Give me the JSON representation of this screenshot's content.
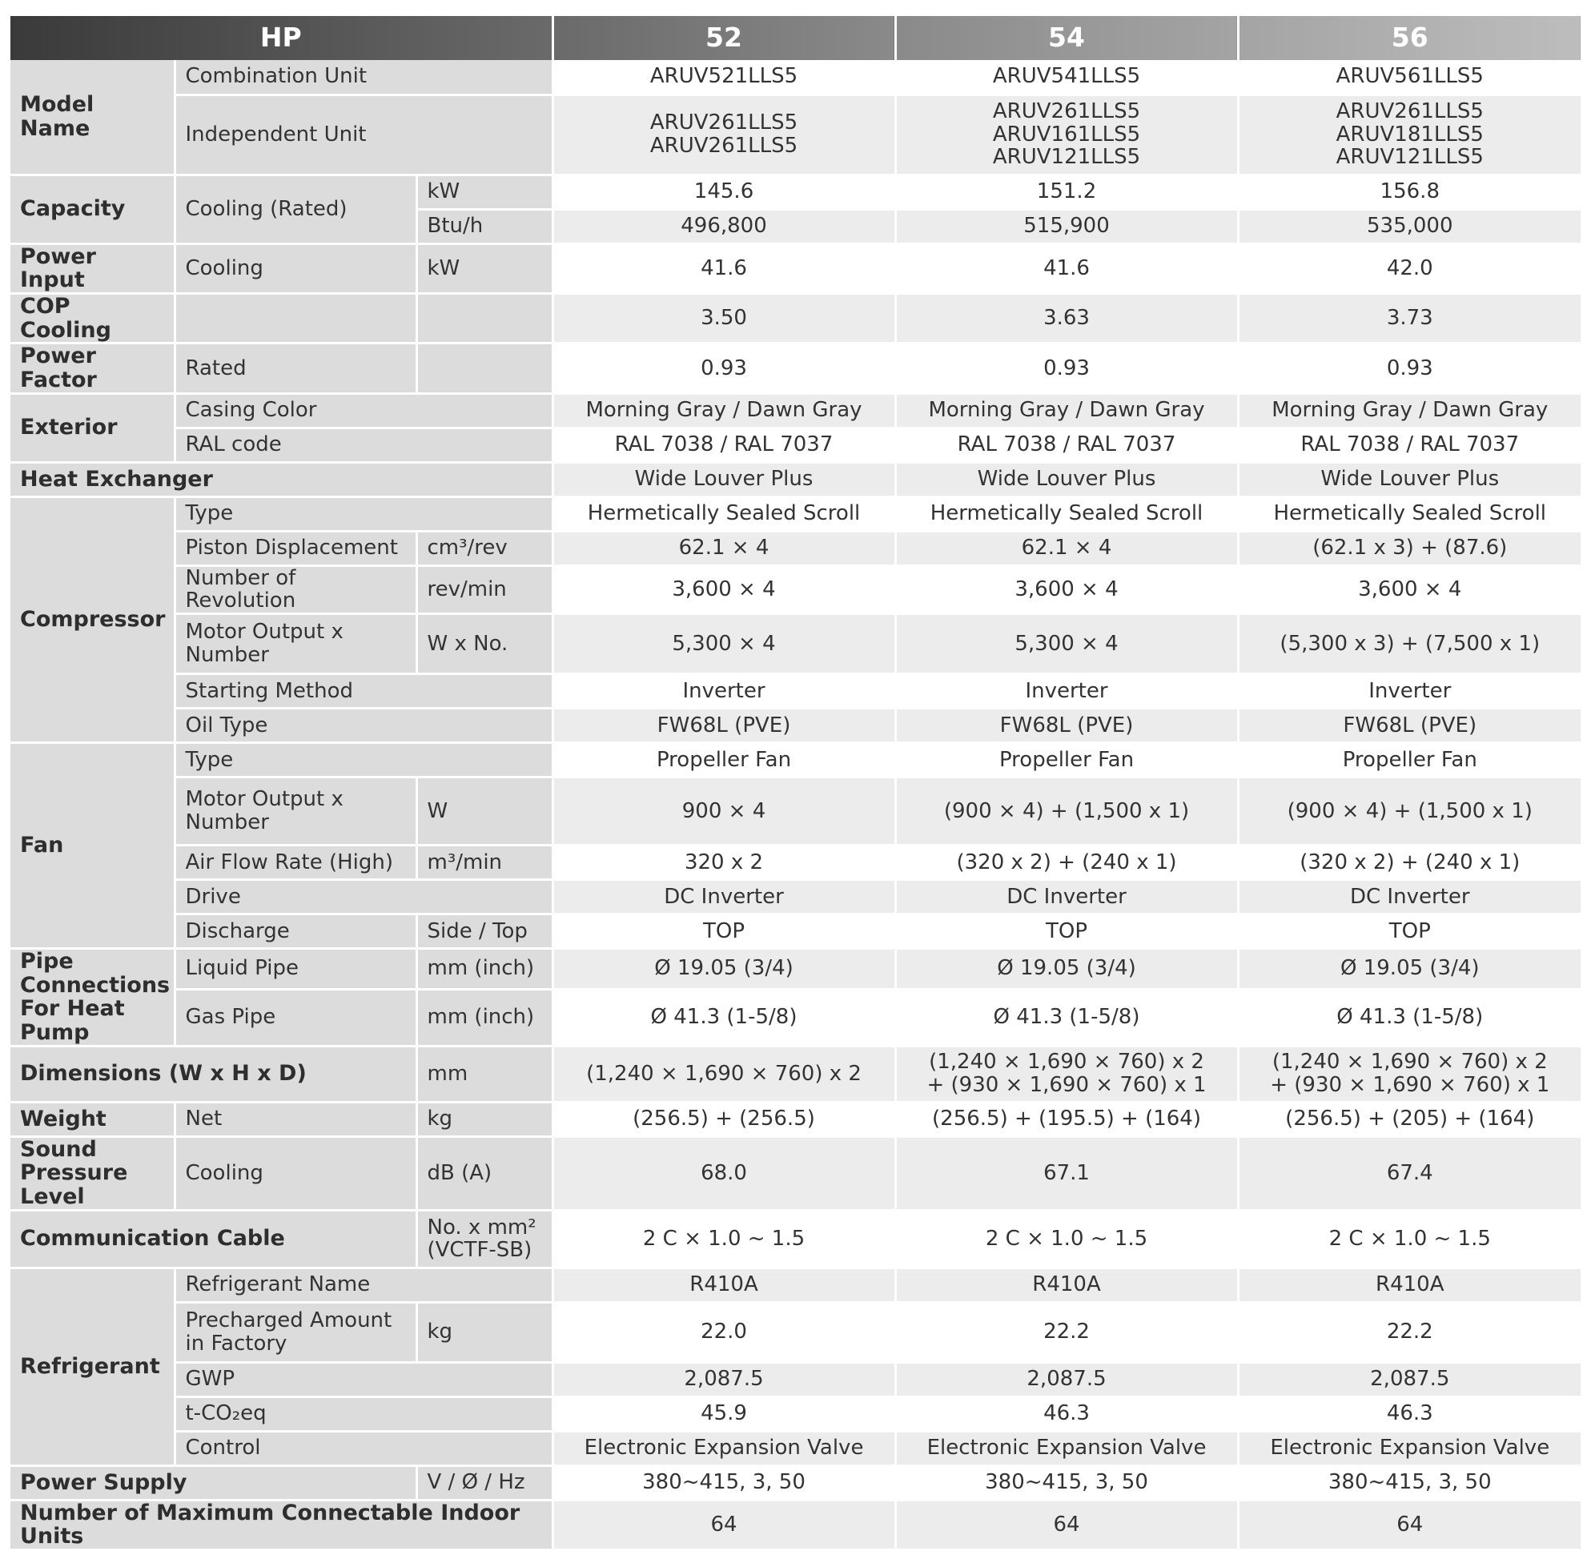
{
  "header": {
    "label": "HP",
    "models": [
      "52",
      "54",
      "56"
    ]
  },
  "rows": [
    {
      "cat": "Model Name",
      "catspan": 2,
      "sub": "Combination Unit",
      "subspan": 2,
      "unit": null,
      "values": [
        "ARUV521LLS5",
        "ARUV541LLS5",
        "ARUV561LLS5"
      ],
      "h": 43
    },
    {
      "sub": "Independent Unit",
      "subspan": 2,
      "unit": null,
      "values": [
        "ARUV261LLS5\nARUV261LLS5",
        "ARUV261LLS5\nARUV161LLS5\nARUV121LLS5",
        "ARUV261LLS5\nARUV181LLS5\nARUV121LLS5"
      ],
      "h": 100
    },
    {
      "cat": "Capacity",
      "catspan": 2,
      "sub": "Cooling (Rated)",
      "subrowspan": 2,
      "unit": "kW",
      "values": [
        "145.6",
        "151.2",
        "156.8"
      ],
      "h": 43
    },
    {
      "unit": "Btu/h",
      "values": [
        "496,800",
        "515,900",
        "535,000"
      ],
      "h": 43
    },
    {
      "cat": "Power Input",
      "sub": "Cooling",
      "unit": "kW",
      "values": [
        "41.6",
        "41.6",
        "42.0"
      ],
      "h": 43
    },
    {
      "cat": "COP Cooling",
      "sub": "",
      "unit": "",
      "values": [
        "3.50",
        "3.63",
        "3.73"
      ],
      "h": 43
    },
    {
      "cat": "Power Factor",
      "sub": "Rated",
      "unit": "",
      "values": [
        "0.93",
        "0.93",
        "0.93"
      ],
      "h": 43
    },
    {
      "cat": "Exterior",
      "catspan": 2,
      "sub": "Casing Color",
      "subspan": 2,
      "values": [
        "Morning Gray / Dawn Gray",
        "Morning Gray / Dawn Gray",
        "Morning Gray / Dawn Gray"
      ],
      "h": 43
    },
    {
      "sub": "RAL code",
      "subspan": 2,
      "values": [
        "RAL 7038 / RAL 7037",
        "RAL 7038 / RAL 7037",
        "RAL 7038 / RAL 7037"
      ],
      "h": 43
    },
    {
      "cat": "Heat Exchanger",
      "catcolspan": 3,
      "values": [
        "Wide Louver Plus",
        "Wide Louver Plus",
        "Wide Louver Plus"
      ],
      "h": 43
    },
    {
      "cat": "Compressor",
      "catspan": 6,
      "sub": "Type",
      "subspan": 2,
      "values": [
        "Hermetically Sealed Scroll",
        "Hermetically Sealed Scroll",
        "Hermetically Sealed Scroll"
      ],
      "h": 43
    },
    {
      "sub": "Piston Displacement",
      "unit": "cm³/rev",
      "values": [
        "62.1 × 4",
        "62.1 × 4",
        "(62.1 x 3) + (87.6)"
      ],
      "h": 43
    },
    {
      "sub": "Number of Revolution",
      "unit": "rev/min",
      "values": [
        "3,600 × 4",
        "3,600 × 4",
        "3,600 × 4"
      ],
      "h": 43
    },
    {
      "sub": "Motor Output x Number",
      "unit": "W x No.",
      "values": [
        "5,300 × 4",
        "5,300 × 4",
        "(5,300 x 3) + (7,500 x 1)"
      ],
      "h": 75
    },
    {
      "sub": "Starting Method",
      "subspan": 2,
      "values": [
        "Inverter",
        "Inverter",
        "Inverter"
      ],
      "h": 43
    },
    {
      "sub": "Oil Type",
      "subspan": 2,
      "values": [
        "FW68L (PVE)",
        "FW68L (PVE)",
        "FW68L (PVE)"
      ],
      "h": 43
    },
    {
      "cat": "Fan",
      "catspan": 5,
      "sub": "Type",
      "subspan": 2,
      "values": [
        "Propeller Fan",
        "Propeller Fan",
        "Propeller Fan"
      ],
      "h": 43
    },
    {
      "sub": "Motor Output x Number",
      "unit": "W",
      "values": [
        "900 × 4",
        "(900 × 4) + (1,500 x 1)",
        "(900 × 4) + (1,500 x 1)"
      ],
      "h": 85
    },
    {
      "sub": "Air Flow Rate (High)",
      "unit": "m³/min",
      "values": [
        "320 x 2",
        "(320 x 2) + (240 x 1)",
        "(320 x 2) + (240 x 1)"
      ],
      "h": 43
    },
    {
      "sub": "Drive",
      "subspan": 2,
      "values": [
        "DC Inverter",
        "DC Inverter",
        "DC Inverter"
      ],
      "h": 43
    },
    {
      "sub": "Discharge",
      "unit": "Side / Top",
      "values": [
        "TOP",
        "TOP",
        "TOP"
      ],
      "h": 43
    },
    {
      "cat": "Pipe Connections For Heat Pump",
      "catspan": 2,
      "sub": "Liquid Pipe",
      "unit": "mm (inch)",
      "values": [
        "Ø 19.05 (3/4)",
        "Ø 19.05 (3/4)",
        "Ø 19.05 (3/4)"
      ],
      "h": 43
    },
    {
      "sub": "Gas Pipe",
      "unit": "mm (inch)",
      "values": [
        "Ø 41.3 (1-5/8)",
        "Ø 41.3 (1-5/8)",
        "Ø 41.3 (1-5/8)"
      ],
      "h": 60
    },
    {
      "cat": "Dimensions (W x H x D)",
      "catcolspan": 2,
      "unit": "mm",
      "values": [
        "(1,240 × 1,690 × 760) x 2",
        "(1,240 × 1,690 × 760) x 2\n+  (930 × 1,690 × 760) x 1",
        "(1,240 × 1,690 × 760) x 2\n+  (930 × 1,690 × 760) x 1"
      ],
      "h": 70
    },
    {
      "cat": "Weight",
      "sub": "Net",
      "unit": "kg",
      "values": [
        "(256.5) + (256.5)",
        "(256.5) + (195.5) + (164)",
        "(256.5) + (205) + (164)"
      ],
      "h": 43
    },
    {
      "cat": "Sound Pressure Level",
      "sub": "Cooling",
      "unit": "dB (A)",
      "values": [
        "68.0",
        "67.1",
        "67.4"
      ],
      "h": 72
    },
    {
      "cat": "Communication Cable",
      "catcolspan": 2,
      "unit": "No. x mm²\n(VCTF-SB)",
      "values": [
        "2 C × 1.0 ~ 1.5",
        "2 C × 1.0 ~ 1.5",
        "2 C × 1.0 ~ 1.5"
      ],
      "h": 72
    },
    {
      "cat": "Refrigerant",
      "catspan": 5,
      "sub": "Refrigerant Name",
      "subspan": 2,
      "values": [
        "R410A",
        "R410A",
        "R410A"
      ],
      "h": 43
    },
    {
      "sub": "Precharged Amount in Factory",
      "unit": "kg",
      "values": [
        "22.0",
        "22.2",
        "22.2"
      ],
      "h": 75
    },
    {
      "sub": "GWP",
      "subspan": 2,
      "values": [
        "2,087.5",
        "2,087.5",
        "2,087.5"
      ],
      "h": 43
    },
    {
      "sub": "t-CO₂eq",
      "subspan": 2,
      "values": [
        "45.9",
        "46.3",
        "46.3"
      ],
      "h": 43
    },
    {
      "sub": "Control",
      "subspan": 2,
      "values": [
        "Electronic Expansion Valve",
        "Electronic Expansion Valve",
        "Electronic Expansion Valve"
      ],
      "h": 43
    },
    {
      "cat": "Power Supply",
      "catcolspan": 2,
      "unit": "V / Ø / Hz",
      "values": [
        "380~415, 3, 50",
        "380~415, 3, 50",
        "380~415, 3, 50"
      ],
      "h": 43
    },
    {
      "cat": "Number of Maximum Connectable Indoor Units",
      "catcolspan": 3,
      "values": [
        "64",
        "64",
        "64"
      ],
      "h": 43
    }
  ]
}
